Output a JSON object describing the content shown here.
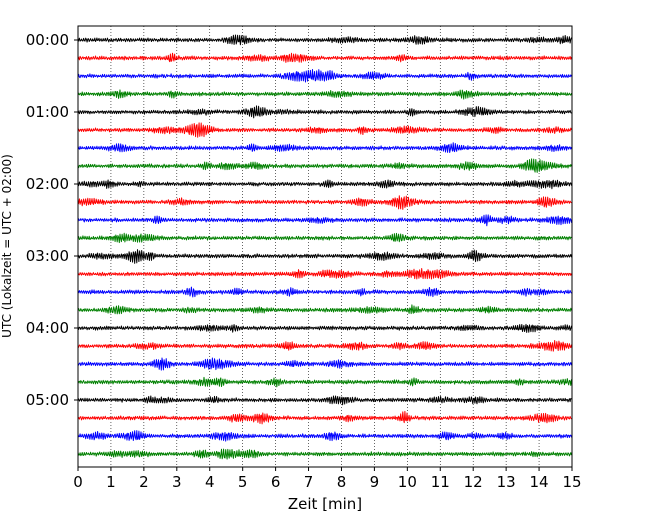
{
  "chart_data": {
    "type": "line",
    "title": "",
    "xlabel": "Zeit  [min]",
    "ylabel": "UTC (Lokalzeit = UTC + 02:00)",
    "xlim": [
      0,
      15
    ],
    "x_ticks": [
      "0",
      "1",
      "2",
      "3",
      "4",
      "5",
      "6",
      "7",
      "8",
      "9",
      "10",
      "11",
      "12",
      "13",
      "14",
      "15"
    ],
    "x_tick_values": [
      0,
      1,
      2,
      3,
      4,
      5,
      6,
      7,
      8,
      9,
      10,
      11,
      12,
      13,
      14,
      15
    ],
    "y_ticks": [
      "00:00",
      "01:00",
      "02:00",
      "03:00",
      "04:00",
      "05:00"
    ],
    "y_tick_rows": [
      0,
      4,
      8,
      12,
      16,
      20
    ],
    "grid": "vertical dotted at each minute",
    "rows_per_hour": 4,
    "row_minutes": 15,
    "trace_colors": [
      "#000000",
      "#ff0000",
      "#0000ff",
      "#008000"
    ],
    "traces": [
      {
        "start": "00:00",
        "color": "#000000"
      },
      {
        "start": "00:15",
        "color": "#ff0000"
      },
      {
        "start": "00:30",
        "color": "#0000ff"
      },
      {
        "start": "00:45",
        "color": "#008000"
      },
      {
        "start": "01:00",
        "color": "#000000"
      },
      {
        "start": "01:15",
        "color": "#ff0000"
      },
      {
        "start": "01:30",
        "color": "#0000ff"
      },
      {
        "start": "01:45",
        "color": "#008000"
      },
      {
        "start": "02:00",
        "color": "#000000"
      },
      {
        "start": "02:15",
        "color": "#ff0000"
      },
      {
        "start": "02:30",
        "color": "#0000ff"
      },
      {
        "start": "02:45",
        "color": "#008000"
      },
      {
        "start": "03:00",
        "color": "#000000"
      },
      {
        "start": "03:15",
        "color": "#ff0000"
      },
      {
        "start": "03:30",
        "color": "#0000ff"
      },
      {
        "start": "03:45",
        "color": "#008000"
      },
      {
        "start": "04:00",
        "color": "#000000"
      },
      {
        "start": "04:15",
        "color": "#ff0000"
      },
      {
        "start": "04:30",
        "color": "#0000ff"
      },
      {
        "start": "04:45",
        "color": "#008000"
      },
      {
        "start": "05:00",
        "color": "#000000"
      },
      {
        "start": "05:15",
        "color": "#ff0000"
      },
      {
        "start": "05:30",
        "color": "#0000ff"
      },
      {
        "start": "05:45",
        "color": "#008000"
      }
    ]
  }
}
